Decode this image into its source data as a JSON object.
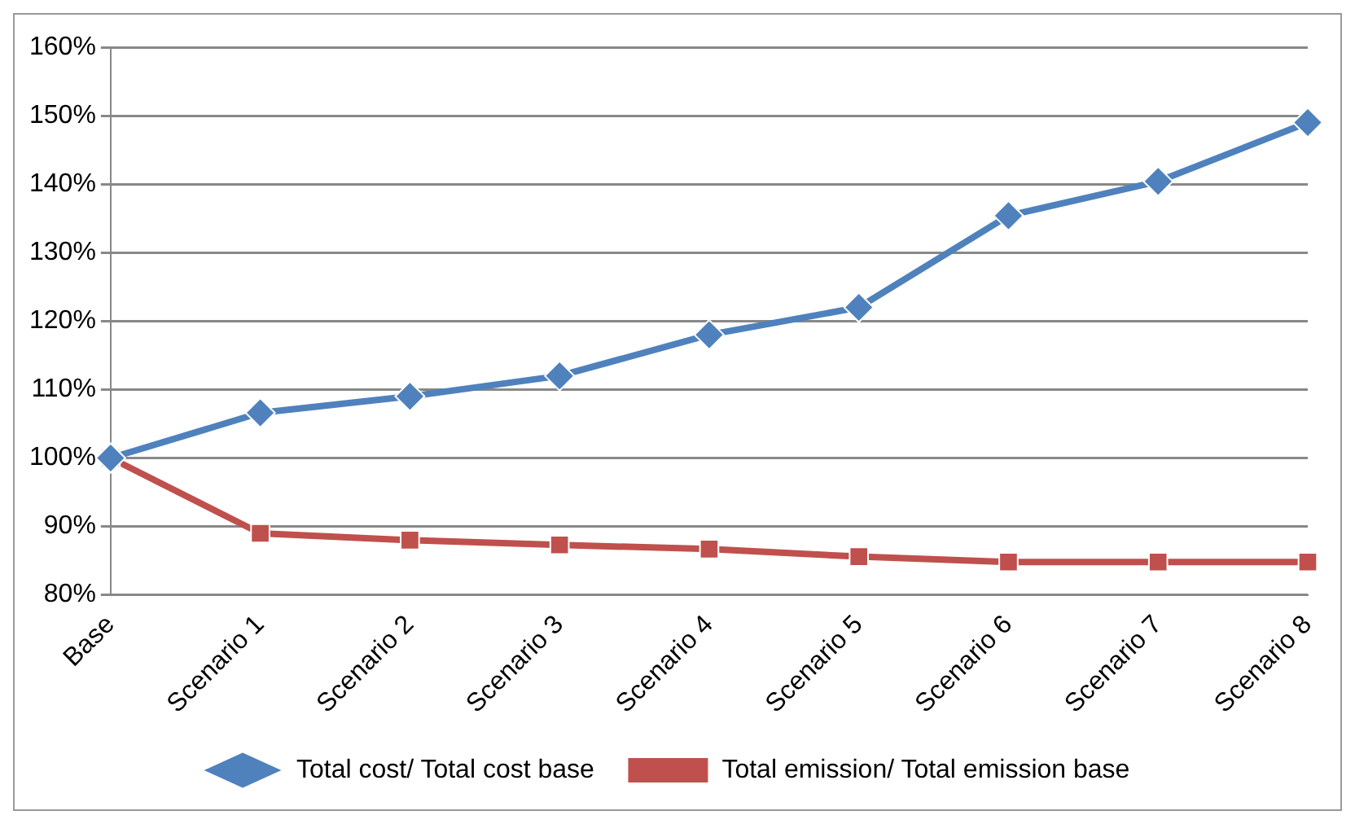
{
  "chart_data": {
    "type": "line",
    "categories": [
      "Base",
      "Scenario 1",
      "Scenario 2",
      "Scenario 3",
      "Scenario 4",
      "Scenario 5",
      "Scenario 6",
      "Scenario 7",
      "Scenario 8"
    ],
    "series": [
      {
        "name": "Total cost/ Total cost base",
        "color": "#4f81bd",
        "marker": "diamond",
        "values": [
          100,
          106.6,
          109,
          112,
          118,
          122,
          135.4,
          140.4,
          149
        ]
      },
      {
        "name": "Total emission/ Total emission base",
        "color": "#c0504d",
        "marker": "square",
        "values": [
          100,
          89,
          88,
          87.3,
          86.7,
          85.6,
          84.8,
          84.8,
          84.8
        ]
      }
    ],
    "ylim": [
      80,
      160
    ],
    "yticks": [
      {
        "value": 80,
        "label": "80%"
      },
      {
        "value": 90,
        "label": "90%"
      },
      {
        "value": 100,
        "label": "100%"
      },
      {
        "value": 110,
        "label": "110%"
      },
      {
        "value": 120,
        "label": "120%"
      },
      {
        "value": 130,
        "label": "130%"
      },
      {
        "value": 140,
        "label": "140%"
      },
      {
        "value": 150,
        "label": "150%"
      },
      {
        "value": 160,
        "label": "160%"
      }
    ],
    "grid": "y",
    "legend": "bottom",
    "line_style": "solid"
  }
}
